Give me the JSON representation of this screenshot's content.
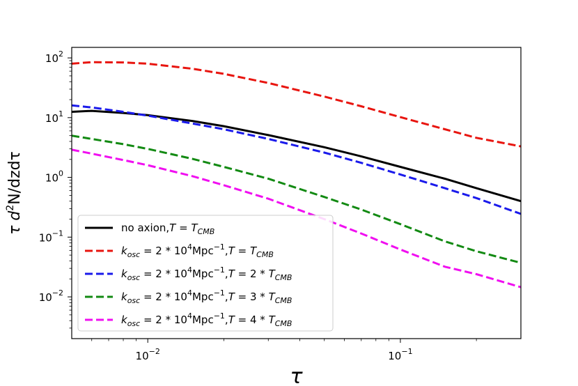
{
  "chart_data": {
    "type": "line",
    "xscale": "log",
    "yscale": "log",
    "xlim": [
      0.005,
      0.3
    ],
    "ylim": [
      0.002,
      150
    ],
    "xlabel": "τ",
    "ylabel": "τ d²N/dzdτ",
    "legend_position": "lower-left",
    "grid": false,
    "x_ticks": [
      {
        "value": 0.01,
        "base": "10",
        "exp": "−2"
      },
      {
        "value": 0.1,
        "base": "10",
        "exp": "−1"
      }
    ],
    "y_ticks": [
      {
        "value": 100,
        "base": "10",
        "exp": "2"
      },
      {
        "value": 10,
        "base": "10",
        "exp": "1"
      },
      {
        "value": 1,
        "base": "10",
        "exp": "0"
      },
      {
        "value": 0.1,
        "base": "10",
        "exp": "−1"
      },
      {
        "value": 0.01,
        "base": "10",
        "exp": "−2"
      }
    ],
    "series": [
      {
        "name": "no axion, T = T_CMB",
        "color": "#000000",
        "style": "solid",
        "legend": {
          "text1": "no axion,",
          "math": "T",
          "eq": " = ",
          "math2": "T",
          "sub2": "CMB"
        },
        "x": [
          0.005,
          0.006,
          0.008,
          0.01,
          0.015,
          0.02,
          0.03,
          0.05,
          0.07,
          0.1,
          0.15,
          0.2,
          0.3
        ],
        "y": [
          12.5,
          13.0,
          12.0,
          11.0,
          8.8,
          7.2,
          5.1,
          3.2,
          2.25,
          1.5,
          0.95,
          0.66,
          0.4
        ]
      },
      {
        "name": "k_osc = 2*10^4 Mpc^-1, T = T_CMB",
        "color": "#e8150f",
        "style": "dashed",
        "legend": {
          "math": "T",
          "sub2": "CMB",
          "mult": ""
        },
        "x": [
          0.005,
          0.006,
          0.008,
          0.01,
          0.015,
          0.02,
          0.03,
          0.05,
          0.07,
          0.1,
          0.15,
          0.2,
          0.3
        ],
        "y": [
          80,
          85,
          84,
          80,
          66,
          54,
          38,
          22.5,
          15.5,
          10.2,
          6.4,
          4.6,
          3.3
        ]
      },
      {
        "name": "k_osc = 2*10^4 Mpc^-1, T = 2*T_CMB",
        "color": "#1a1aeb",
        "style": "dashed",
        "legend": {
          "math": "T",
          "sub2": "CMB",
          "mult": "2 * "
        },
        "x": [
          0.005,
          0.006,
          0.008,
          0.01,
          0.015,
          0.02,
          0.03,
          0.05,
          0.07,
          0.1,
          0.15,
          0.2,
          0.3
        ],
        "y": [
          16.0,
          14.8,
          12.5,
          10.8,
          8.0,
          6.4,
          4.4,
          2.6,
          1.75,
          1.12,
          0.66,
          0.45,
          0.245
        ]
      },
      {
        "name": "k_osc = 2*10^4 Mpc^-1, T = 3*T_CMB",
        "color": "#138a13",
        "style": "dashed",
        "legend": {
          "math": "T",
          "sub2": "CMB",
          "mult": "3 * "
        },
        "x": [
          0.005,
          0.006,
          0.008,
          0.01,
          0.015,
          0.02,
          0.03,
          0.05,
          0.07,
          0.1,
          0.15,
          0.2,
          0.3
        ],
        "y": [
          5.0,
          4.4,
          3.6,
          3.0,
          2.05,
          1.5,
          0.95,
          0.47,
          0.29,
          0.165,
          0.085,
          0.058,
          0.037
        ]
      },
      {
        "name": "k_osc = 2*10^4 Mpc^-1, T = 4*T_CMB",
        "color": "#f00ff0",
        "style": "dashed",
        "legend": {
          "math": "T",
          "sub2": "CMB",
          "mult": "4 * "
        },
        "x": [
          0.005,
          0.006,
          0.008,
          0.01,
          0.015,
          0.02,
          0.03,
          0.05,
          0.07,
          0.1,
          0.15,
          0.2,
          0.3
        ],
        "y": [
          2.9,
          2.5,
          1.95,
          1.6,
          1.05,
          0.74,
          0.44,
          0.2,
          0.115,
          0.062,
          0.032,
          0.024,
          0.0145
        ]
      }
    ],
    "legend_common": {
      "k": "k",
      "k_sub": "osc",
      "eq": " = 2 * 10",
      "exp4": "4",
      "unit": "Mpc",
      "exp_m1": "−1",
      "comma": ","
    }
  }
}
